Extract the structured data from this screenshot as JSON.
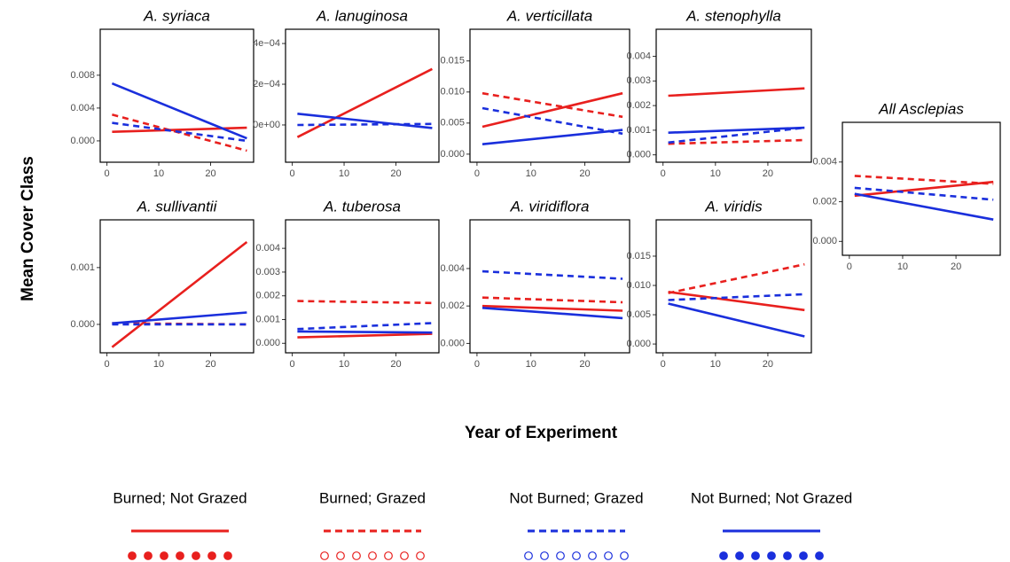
{
  "y_label": "Mean Cover Class",
  "x_label": "Year of Experiment",
  "legend_markers": [
    "filled",
    "open",
    "open",
    "filled"
  ],
  "chart_data": [
    {
      "type": "line",
      "title": "A. syriaca",
      "x": [
        1,
        27
      ],
      "xlim": [
        -1.3,
        28.3
      ],
      "xticks": [
        0,
        10,
        20
      ],
      "ylim": [
        -0.0026,
        0.0136
      ],
      "yticks": [
        {
          "value": 0,
          "label": "0.000"
        },
        {
          "value": 0.004,
          "label": "0.004"
        },
        {
          "value": 0.008,
          "label": "0.008"
        }
      ],
      "series": [
        {
          "name": "Burned; Not Grazed",
          "color": "#e8201e",
          "dash": false,
          "values": [
            0.0011,
            0.0016
          ]
        },
        {
          "name": "Burned; Grazed",
          "color": "#e8201e",
          "dash": true,
          "values": [
            0.0032,
            -0.0012
          ]
        },
        {
          "name": "Not Burned; Grazed",
          "color": "#1a2fdc",
          "dash": true,
          "values": [
            0.0022,
            0.0
          ]
        },
        {
          "name": "Not Burned; Not Grazed",
          "color": "#1a2fdc",
          "dash": false,
          "values": [
            0.007,
            0.0003
          ]
        }
      ]
    },
    {
      "type": "line",
      "title": "A. lanuginosa",
      "x": [
        1,
        27
      ],
      "xlim": [
        -1.3,
        28.3
      ],
      "xticks": [
        0,
        10,
        20
      ],
      "ylim": [
        -0.000183,
        0.00047
      ],
      "yticks": [
        {
          "value": 0,
          "label": "0e+00"
        },
        {
          "value": 0.0002,
          "label": "2e−04"
        },
        {
          "value": 0.0004,
          "label": "4e−04"
        }
      ],
      "series": [
        {
          "color": "#e8201e",
          "dash": false,
          "values": [
            -6e-05,
            0.000275
          ]
        },
        {
          "color": "#e8201e",
          "dash": true,
          "values": [
            null,
            null
          ]
        },
        {
          "color": "#1a2fdc",
          "dash": true,
          "values": [
            0.0,
            5e-06
          ]
        },
        {
          "color": "#1a2fdc",
          "dash": false,
          "values": [
            5.5e-05,
            -1.5e-05
          ]
        }
      ]
    },
    {
      "type": "line",
      "title": "A. verticillata",
      "x": [
        1,
        27
      ],
      "xlim": [
        -1.3,
        28.3
      ],
      "xticks": [
        0,
        10,
        20
      ],
      "ylim": [
        -0.0013,
        0.0201
      ],
      "yticks": [
        {
          "value": 0,
          "label": "0.000"
        },
        {
          "value": 0.005,
          "label": "0.005"
        },
        {
          "value": 0.01,
          "label": "0.010"
        },
        {
          "value": 0.015,
          "label": "0.015"
        }
      ],
      "series": [
        {
          "color": "#e8201e",
          "dash": false,
          "values": [
            0.0044,
            0.0098
          ]
        },
        {
          "color": "#e8201e",
          "dash": true,
          "values": [
            0.0098,
            0.006
          ]
        },
        {
          "color": "#1a2fdc",
          "dash": true,
          "values": [
            0.0074,
            0.0033
          ]
        },
        {
          "color": "#1a2fdc",
          "dash": false,
          "values": [
            0.0016,
            0.0039
          ]
        }
      ]
    },
    {
      "type": "line",
      "title": "A. stenophylla",
      "x": [
        1,
        27
      ],
      "xlim": [
        -1.3,
        28.3
      ],
      "xticks": [
        0,
        10,
        20
      ],
      "ylim": [
        -0.0003,
        0.0051
      ],
      "yticks": [
        {
          "value": 0,
          "label": "0.000"
        },
        {
          "value": 0.001,
          "label": "0.001"
        },
        {
          "value": 0.002,
          "label": "0.002"
        },
        {
          "value": 0.003,
          "label": "0.003"
        },
        {
          "value": 0.004,
          "label": "0.004"
        }
      ],
      "series": [
        {
          "color": "#e8201e",
          "dash": false,
          "values": [
            0.0024,
            0.0027
          ]
        },
        {
          "color": "#e8201e",
          "dash": true,
          "values": [
            0.00045,
            0.0006
          ]
        },
        {
          "color": "#1a2fdc",
          "dash": true,
          "values": [
            0.0005,
            0.0011
          ]
        },
        {
          "color": "#1a2fdc",
          "dash": false,
          "values": [
            0.0009,
            0.0011
          ]
        }
      ]
    },
    {
      "type": "line",
      "title": "A. sullivantii",
      "x": [
        1,
        27
      ],
      "xlim": [
        -1.3,
        28.3
      ],
      "xticks": [
        0,
        10,
        20
      ],
      "ylim": [
        -0.0005,
        0.00184
      ],
      "yticks": [
        {
          "value": 0,
          "label": "0.000"
        },
        {
          "value": 0.001,
          "label": "0.001"
        }
      ],
      "series": [
        {
          "color": "#e8201e",
          "dash": false,
          "values": [
            -0.0004,
            0.00145
          ]
        },
        {
          "color": "#e8201e",
          "dash": true,
          "values": [
            2e-05,
            0.0
          ]
        },
        {
          "color": "#1a2fdc",
          "dash": true,
          "values": [
            0.0,
            0.0
          ]
        },
        {
          "color": "#1a2fdc",
          "dash": false,
          "values": [
            2e-05,
            0.00021
          ]
        }
      ]
    },
    {
      "type": "line",
      "title": "A. tuberosa",
      "x": [
        1,
        27
      ],
      "xlim": [
        -1.3,
        28.3
      ],
      "xticks": [
        0,
        10,
        20
      ],
      "ylim": [
        -0.0004,
        0.0052
      ],
      "yticks": [
        {
          "value": 0,
          "label": "0.000"
        },
        {
          "value": 0.001,
          "label": "0.001"
        },
        {
          "value": 0.002,
          "label": "0.002"
        },
        {
          "value": 0.003,
          "label": "0.003"
        },
        {
          "value": 0.004,
          "label": "0.004"
        }
      ],
      "series": [
        {
          "color": "#e8201e",
          "dash": false,
          "values": [
            0.00025,
            0.0004
          ]
        },
        {
          "color": "#e8201e",
          "dash": true,
          "values": [
            0.00178,
            0.0017
          ]
        },
        {
          "color": "#1a2fdc",
          "dash": true,
          "values": [
            0.0006,
            0.00085
          ]
        },
        {
          "color": "#1a2fdc",
          "dash": false,
          "values": [
            0.0005,
            0.00045
          ]
        }
      ]
    },
    {
      "type": "line",
      "title": "A. viridiflora",
      "x": [
        1,
        27
      ],
      "xlim": [
        -1.3,
        28.3
      ],
      "xticks": [
        0,
        10,
        20
      ],
      "ylim": [
        -0.0005,
        0.0066
      ],
      "yticks": [
        {
          "value": 0,
          "label": "0.000"
        },
        {
          "value": 0.002,
          "label": "0.002"
        },
        {
          "value": 0.004,
          "label": "0.004"
        }
      ],
      "series": [
        {
          "color": "#e8201e",
          "dash": false,
          "values": [
            0.002,
            0.00175
          ]
        },
        {
          "color": "#e8201e",
          "dash": true,
          "values": [
            0.00245,
            0.0022
          ]
        },
        {
          "color": "#1a2fdc",
          "dash": true,
          "values": [
            0.00385,
            0.00345
          ]
        },
        {
          "color": "#1a2fdc",
          "dash": false,
          "values": [
            0.0019,
            0.00135
          ]
        }
      ]
    },
    {
      "type": "line",
      "title": "A. viridis",
      "x": [
        1,
        27
      ],
      "xlim": [
        -1.3,
        28.3
      ],
      "xticks": [
        0,
        10,
        20
      ],
      "ylim": [
        -0.0015,
        0.0212
      ],
      "yticks": [
        {
          "value": 0,
          "label": "0.000"
        },
        {
          "value": 0.005,
          "label": "0.005"
        },
        {
          "value": 0.01,
          "label": "0.010"
        },
        {
          "value": 0.015,
          "label": "0.015"
        }
      ],
      "series": [
        {
          "color": "#e8201e",
          "dash": false,
          "values": [
            0.0089,
            0.0058
          ]
        },
        {
          "color": "#e8201e",
          "dash": true,
          "values": [
            0.0087,
            0.0136
          ]
        },
        {
          "color": "#1a2fdc",
          "dash": true,
          "values": [
            0.0075,
            0.0085
          ]
        },
        {
          "color": "#1a2fdc",
          "dash": false,
          "values": [
            0.0069,
            0.0013
          ]
        }
      ]
    },
    {
      "type": "line",
      "title": "All Asclepias",
      "x": [
        1,
        27
      ],
      "xlim": [
        -1.3,
        28.3
      ],
      "xticks": [
        0,
        10,
        20
      ],
      "ylim": [
        -0.0007,
        0.006
      ],
      "yticks": [
        {
          "value": 0,
          "label": "0.000"
        },
        {
          "value": 0.002,
          "label": "0.002"
        },
        {
          "value": 0.004,
          "label": "0.004"
        }
      ],
      "series": [
        {
          "color": "#e8201e",
          "dash": false,
          "values": [
            0.0023,
            0.003
          ]
        },
        {
          "color": "#e8201e",
          "dash": true,
          "values": [
            0.0033,
            0.0029
          ]
        },
        {
          "color": "#1a2fdc",
          "dash": true,
          "values": [
            0.0027,
            0.0021
          ]
        },
        {
          "color": "#1a2fdc",
          "dash": false,
          "values": [
            0.0024,
            0.0011
          ]
        }
      ]
    }
  ]
}
